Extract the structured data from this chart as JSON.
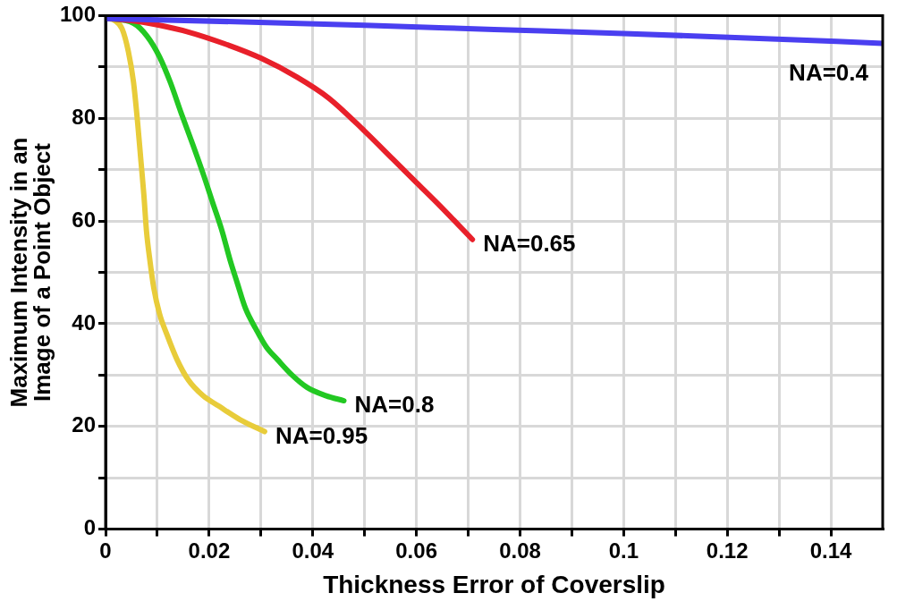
{
  "chart_data": {
    "type": "line",
    "xlabel": "Thickness Error of Coverslip",
    "ylabel": "Maximum Intensity in an\nImage of a Point Object",
    "xlim": [
      0,
      0.15
    ],
    "xticks": [
      0,
      {
        "value": 0.01,
        "label": null
      },
      0.02,
      {
        "value": 0.03,
        "label": null
      },
      0.04,
      {
        "value": 0.05,
        "label": null
      },
      0.06,
      {
        "value": 0.07,
        "label": null
      },
      0.08,
      {
        "value": 0.09,
        "label": null
      },
      0.1,
      {
        "value": 0.11,
        "label": null
      },
      0.12,
      {
        "value": 0.13,
        "label": null
      },
      0.14
    ],
    "ylim": [
      0,
      100
    ],
    "yticks": [
      0,
      {
        "value": 10,
        "label": null
      },
      20,
      {
        "value": 30,
        "label": null
      },
      40,
      {
        "value": 50,
        "label": null
      },
      60,
      {
        "value": 70,
        "label": null
      },
      80,
      {
        "value": 90,
        "label": null
      },
      100
    ],
    "grid": true,
    "marker": "none",
    "line_style": "solid",
    "series": [
      {
        "name": "NA=0.4",
        "color": "#4a3ff0",
        "x": [
          0,
          0.025,
          0.05,
          0.075,
          0.1,
          0.125,
          0.15
        ],
        "values": [
          99.4,
          98.8,
          98.1,
          97.3,
          96.5,
          95.6,
          94.6
        ]
      },
      {
        "name": "NA=0.65",
        "color": "#e8202a",
        "x": [
          0,
          0.005,
          0.01,
          0.016,
          0.023,
          0.03,
          0.037,
          0.043,
          0.05,
          0.0555,
          0.06,
          0.0645,
          0.0708
        ],
        "values": [
          99.5,
          99,
          98.2,
          96.8,
          94.5,
          91.7,
          88,
          84,
          77.5,
          72,
          67.5,
          63,
          56.4
        ]
      },
      {
        "name": "NA=0.8",
        "color": "#22c822",
        "x": [
          0,
          0.0054,
          0.008,
          0.0104,
          0.0125,
          0.0146,
          0.0168,
          0.0189,
          0.0207,
          0.0225,
          0.024,
          0.0254,
          0.027,
          0.029,
          0.031,
          0.0332,
          0.036,
          0.0389,
          0.0425,
          0.046
        ],
        "values": [
          99.5,
          98.5,
          96,
          92,
          87,
          81,
          75,
          69,
          63.5,
          58,
          52.5,
          48,
          43,
          39,
          35.5,
          33,
          30,
          27.6,
          26,
          25
        ]
      },
      {
        "name": "NA=0.95",
        "color": "#e8cc3a",
        "x": [
          0,
          0.0018,
          0.0032,
          0.0044,
          0.0054,
          0.0062,
          0.0068,
          0.0074,
          0.0079,
          0.0086,
          0.0093,
          0.0104,
          0.0118,
          0.0138,
          0.016,
          0.0188,
          0.0218,
          0.026,
          0.0307
        ],
        "values": [
          99.5,
          99,
          97.4,
          93,
          87,
          79,
          72,
          65,
          58,
          52,
          47,
          42,
          38,
          33,
          29,
          26,
          24,
          21.3,
          19
        ]
      }
    ]
  }
}
